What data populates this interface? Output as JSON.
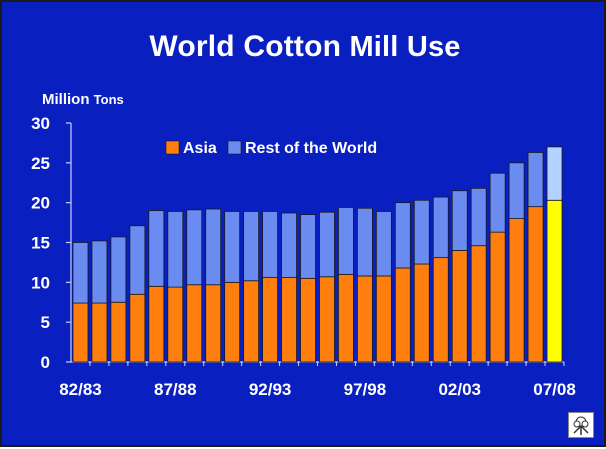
{
  "title_main": "World Cotton",
  "title_tail": "Mill Use",
  "unit_main": "Million",
  "unit_tail": "Tons",
  "logo_icon": "cotton-boll-icon",
  "colors": {
    "background": "#0a1fbf",
    "asia": "#ff7f0e",
    "rest": "#6a8cf0",
    "asia_projection": "#ffff00",
    "rest_projection": "#b4d2ff",
    "text": "#ffffff"
  },
  "chart_data": {
    "type": "bar",
    "stacked": true,
    "title": "World Cotton Mill Use",
    "ylabel": "Million Tons",
    "ylim": [
      0,
      30
    ],
    "yticks": [
      0,
      5,
      10,
      15,
      20,
      25,
      30
    ],
    "xtick_labels": [
      "82/83",
      "87/88",
      "92/93",
      "97/98",
      "02/03",
      "07/08"
    ],
    "legend_position": "top-center",
    "categories": [
      "82/83",
      "83/84",
      "84/85",
      "85/86",
      "86/87",
      "87/88",
      "88/89",
      "89/90",
      "90/91",
      "91/92",
      "92/93",
      "93/94",
      "94/95",
      "95/96",
      "96/97",
      "97/98",
      "98/99",
      "99/00",
      "00/01",
      "01/02",
      "02/03",
      "03/04",
      "04/05",
      "05/06",
      "06/07",
      "07/08"
    ],
    "series": [
      {
        "name": "Asia",
        "values": [
          7.4,
          7.4,
          7.5,
          8.5,
          9.5,
          9.4,
          9.7,
          9.7,
          10.0,
          10.2,
          10.6,
          10.6,
          10.5,
          10.7,
          11.0,
          10.8,
          10.8,
          11.8,
          12.3,
          13.1,
          14.0,
          14.6,
          16.3,
          18.0,
          19.5,
          20.3
        ]
      },
      {
        "name": "Rest of the World",
        "values": [
          7.6,
          7.8,
          8.2,
          8.6,
          9.5,
          9.5,
          9.4,
          9.5,
          8.9,
          8.7,
          8.3,
          8.1,
          8.0,
          8.1,
          8.4,
          8.5,
          8.1,
          8.2,
          8.0,
          7.6,
          7.5,
          7.2,
          7.4,
          7.0,
          6.8,
          6.7
        ]
      }
    ],
    "projection_categories": [
      "07/08"
    ]
  }
}
